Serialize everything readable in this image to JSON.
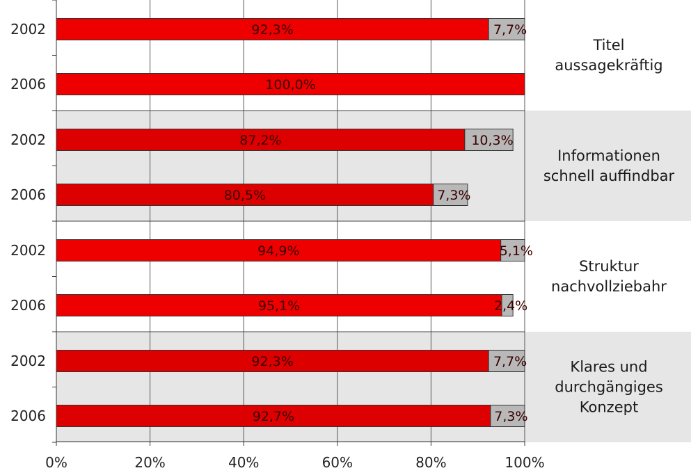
{
  "chart_data": {
    "type": "bar",
    "orientation": "horizontal",
    "stacked": true,
    "xlim": [
      0,
      100
    ],
    "x_ticks": [
      "0%",
      "20%",
      "40%",
      "60%",
      "80%",
      "100%"
    ],
    "grid": true,
    "groups": [
      {
        "label_lines": [
          "Titel",
          "aussagekräftig"
        ],
        "shaded": false,
        "rows": [
          {
            "year": "2002",
            "positive": 92.3,
            "positive_label": "92,3%",
            "neutral": 7.7,
            "neutral_label": "7,7%"
          },
          {
            "year": "2006",
            "positive": 100.0,
            "positive_label": "100,0%",
            "neutral": 0,
            "neutral_label": ""
          }
        ]
      },
      {
        "label_lines": [
          "Informationen",
          "schnell auffindbar"
        ],
        "shaded": true,
        "rows": [
          {
            "year": "2002",
            "positive": 87.2,
            "positive_label": "87,2%",
            "neutral": 10.3,
            "neutral_label": "10,3%"
          },
          {
            "year": "2006",
            "positive": 80.5,
            "positive_label": "80,5%",
            "neutral": 7.3,
            "neutral_label": "7,3%"
          }
        ]
      },
      {
        "label_lines": [
          "Struktur",
          "nachvollziebahr"
        ],
        "shaded": false,
        "rows": [
          {
            "year": "2002",
            "positive": 94.9,
            "positive_label": "94,9%",
            "neutral": 5.1,
            "neutral_label": "5,1%"
          },
          {
            "year": "2006",
            "positive": 95.1,
            "positive_label": "95,1%",
            "neutral": 2.4,
            "neutral_label": "2,4%"
          }
        ]
      },
      {
        "label_lines": [
          "Klares und",
          "durchgängiges",
          "Konzept"
        ],
        "shaded": true,
        "rows": [
          {
            "year": "2002",
            "positive": 92.3,
            "positive_label": "92,3%",
            "neutral": 7.7,
            "neutral_label": "7,7%"
          },
          {
            "year": "2006",
            "positive": 92.7,
            "positive_label": "92,7%",
            "neutral": 7.3,
            "neutral_label": "7,3%"
          }
        ]
      }
    ],
    "colors": {
      "positive_bar": "#ee0000",
      "positive_bar_shaded": "#dd0000",
      "neutral_bar": "#b8b8b8",
      "band": "#e6e6e6",
      "grid": "#555555"
    }
  }
}
